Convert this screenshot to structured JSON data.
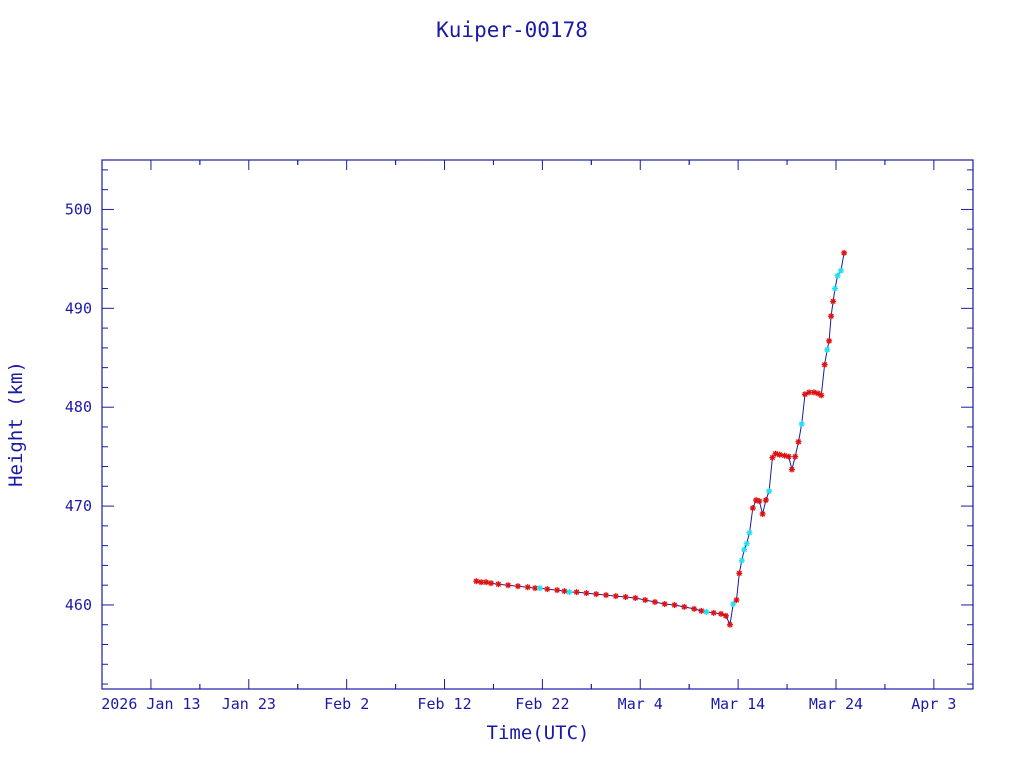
{
  "chart_data": {
    "type": "scatter",
    "title": "Kuiper-00178",
    "xlabel": "Time(UTC)",
    "ylabel": "Height (km)",
    "x_start": "2026-01-13",
    "x_ticks": [
      {
        "date": "2026-01-13",
        "label": "2026 Jan 13"
      },
      {
        "date": "2026-01-23",
        "label": "Jan 23"
      },
      {
        "date": "2026-02-02",
        "label": "Feb  2"
      },
      {
        "date": "2026-02-12",
        "label": "Feb 12"
      },
      {
        "date": "2026-02-22",
        "label": "Feb 22"
      },
      {
        "date": "2026-03-04",
        "label": "Mar  4"
      },
      {
        "date": "2026-03-14",
        "label": "Mar 14"
      },
      {
        "date": "2026-03-24",
        "label": "Mar 24"
      },
      {
        "date": "2026-04-03",
        "label": "Apr  3"
      }
    ],
    "xlim": [
      "2026-01-08",
      "2026-04-07"
    ],
    "ylim": [
      451.5,
      505
    ],
    "y_ticks": [
      460,
      470,
      480,
      490,
      500
    ],
    "colors": {
      "axis": "#1a1aa6",
      "marker": "#e01010",
      "marker_alt": "#22e0f0",
      "line": "#1a1aa6"
    },
    "series": [
      {
        "marker": "star",
        "points": [
          {
            "x": "2026-02-15",
            "y": 462.4,
            "c": "red"
          },
          {
            "x": "2026-02-15",
            "y": 462.3,
            "c": "red"
          },
          {
            "x": "2026-02-16",
            "y": 462.3,
            "c": "red"
          },
          {
            "x": "2026-02-16",
            "y": 462.2,
            "c": "red"
          },
          {
            "x": "2026-02-17",
            "y": 462.1,
            "c": "red"
          },
          {
            "x": "2026-02-18",
            "y": 462.0,
            "c": "red"
          },
          {
            "x": "2026-02-19",
            "y": 461.9,
            "c": "red"
          },
          {
            "x": "2026-02-20",
            "y": 461.8,
            "c": "red"
          },
          {
            "x": "2026-02-21",
            "y": 461.7,
            "c": "red"
          },
          {
            "x": "2026-02-21",
            "y": 461.7,
            "c": "cyan"
          },
          {
            "x": "2026-02-22",
            "y": 461.6,
            "c": "red"
          },
          {
            "x": "2026-02-23",
            "y": 461.5,
            "c": "red"
          },
          {
            "x": "2026-02-24",
            "y": 461.4,
            "c": "red"
          },
          {
            "x": "2026-02-24",
            "y": 461.3,
            "c": "cyan"
          },
          {
            "x": "2026-02-25",
            "y": 461.3,
            "c": "red"
          },
          {
            "x": "2026-02-26",
            "y": 461.2,
            "c": "red"
          },
          {
            "x": "2026-02-27",
            "y": 461.1,
            "c": "red"
          },
          {
            "x": "2026-02-28",
            "y": 461.0,
            "c": "red"
          },
          {
            "x": "2026-03-01",
            "y": 460.9,
            "c": "red"
          },
          {
            "x": "2026-03-02",
            "y": 460.8,
            "c": "red"
          },
          {
            "x": "2026-03-03",
            "y": 460.7,
            "c": "red"
          },
          {
            "x": "2026-03-04",
            "y": 460.5,
            "c": "red"
          },
          {
            "x": "2026-03-05",
            "y": 460.3,
            "c": "red"
          },
          {
            "x": "2026-03-06",
            "y": 460.1,
            "c": "red"
          },
          {
            "x": "2026-03-07",
            "y": 460.0,
            "c": "red"
          },
          {
            "x": "2026-03-08",
            "y": 459.8,
            "c": "red"
          },
          {
            "x": "2026-03-09",
            "y": 459.6,
            "c": "red"
          },
          {
            "x": "2026-03-10",
            "y": 459.4,
            "c": "red"
          },
          {
            "x": "2026-03-10",
            "y": 459.3,
            "c": "cyan"
          },
          {
            "x": "2026-03-11",
            "y": 459.2,
            "c": "red"
          },
          {
            "x": "2026-03-12",
            "y": 459.1,
            "c": "red"
          },
          {
            "x": "2026-03-12",
            "y": 458.9,
            "c": "red"
          },
          {
            "x": "2026-03-13",
            "y": 458.0,
            "c": "red"
          },
          {
            "x": "2026-03-13",
            "y": 460.1,
            "c": "cyan"
          },
          {
            "x": "2026-03-13",
            "y": 460.5,
            "c": "red"
          },
          {
            "x": "2026-03-14",
            "y": 463.2,
            "c": "red"
          },
          {
            "x": "2026-03-14",
            "y": 464.5,
            "c": "cyan"
          },
          {
            "x": "2026-03-14",
            "y": 465.6,
            "c": "cyan"
          },
          {
            "x": "2026-03-14",
            "y": 466.2,
            "c": "cyan"
          },
          {
            "x": "2026-03-15",
            "y": 467.3,
            "c": "cyan"
          },
          {
            "x": "2026-03-15",
            "y": 469.8,
            "c": "red"
          },
          {
            "x": "2026-03-15",
            "y": 470.6,
            "c": "red"
          },
          {
            "x": "2026-03-16",
            "y": 470.5,
            "c": "red"
          },
          {
            "x": "2026-03-16",
            "y": 469.2,
            "c": "red"
          },
          {
            "x": "2026-03-16",
            "y": 470.6,
            "c": "red"
          },
          {
            "x": "2026-03-17",
            "y": 471.5,
            "c": "cyan"
          },
          {
            "x": "2026-03-17",
            "y": 474.9,
            "c": "red"
          },
          {
            "x": "2026-03-17",
            "y": 475.3,
            "c": "red"
          },
          {
            "x": "2026-03-18",
            "y": 475.2,
            "c": "red"
          },
          {
            "x": "2026-03-18",
            "y": 475.1,
            "c": "red"
          },
          {
            "x": "2026-03-19",
            "y": 475.0,
            "c": "red"
          },
          {
            "x": "2026-03-19",
            "y": 473.7,
            "c": "red"
          },
          {
            "x": "2026-03-19",
            "y": 475.0,
            "c": "red"
          },
          {
            "x": "2026-03-20",
            "y": 476.5,
            "c": "red"
          },
          {
            "x": "2026-03-20",
            "y": 478.3,
            "c": "cyan"
          },
          {
            "x": "2026-03-20",
            "y": 481.3,
            "c": "red"
          },
          {
            "x": "2026-03-21",
            "y": 481.5,
            "c": "red"
          },
          {
            "x": "2026-03-21",
            "y": 481.5,
            "c": "red"
          },
          {
            "x": "2026-03-22",
            "y": 481.4,
            "c": "red"
          },
          {
            "x": "2026-03-22",
            "y": 481.2,
            "c": "red"
          },
          {
            "x": "2026-03-22",
            "y": 484.3,
            "c": "red"
          },
          {
            "x": "2026-03-23",
            "y": 485.8,
            "c": "cyan"
          },
          {
            "x": "2026-03-23",
            "y": 486.7,
            "c": "red"
          },
          {
            "x": "2026-03-23",
            "y": 489.2,
            "c": "red"
          },
          {
            "x": "2026-03-23",
            "y": 490.7,
            "c": "red"
          },
          {
            "x": "2026-03-23",
            "y": 492.0,
            "c": "cyan"
          },
          {
            "x": "2026-03-24",
            "y": 493.3,
            "c": "cyan"
          },
          {
            "x": "2026-03-24",
            "y": 493.8,
            "c": "cyan"
          },
          {
            "x": "2026-03-24",
            "y": 495.6,
            "c": "red"
          }
        ]
      }
    ]
  }
}
